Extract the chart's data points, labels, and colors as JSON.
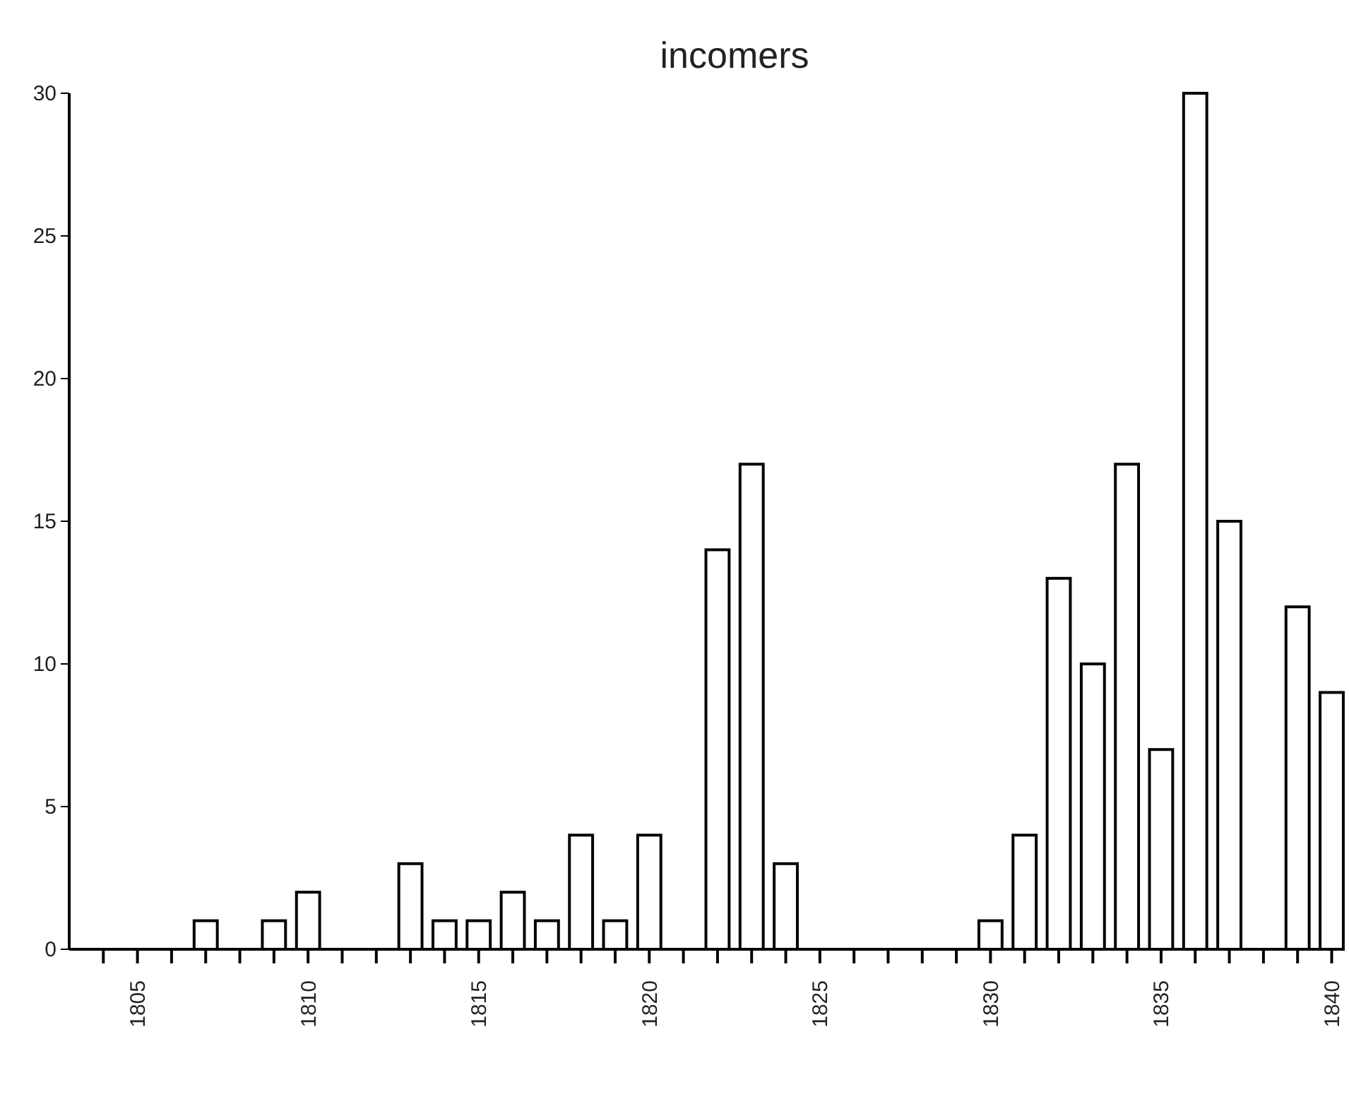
{
  "chart_data": {
    "type": "bar",
    "title": "incomers",
    "x": [
      1805,
      1806,
      1807,
      1808,
      1809,
      1810,
      1811,
      1812,
      1813,
      1814,
      1815,
      1816,
      1817,
      1818,
      1819,
      1820,
      1821,
      1822,
      1823,
      1824,
      1825,
      1826,
      1827,
      1828,
      1829,
      1830,
      1831,
      1832,
      1833,
      1834,
      1835,
      1836,
      1837,
      1838,
      1839,
      1840
    ],
    "values": [
      0,
      0,
      1,
      0,
      1,
      2,
      0,
      0,
      3,
      1,
      1,
      2,
      1,
      4,
      1,
      4,
      0,
      14,
      17,
      3,
      0,
      0,
      0,
      0,
      0,
      1,
      4,
      13,
      10,
      17,
      7,
      30,
      15,
      0,
      12,
      9
    ],
    "color": "#ffffff",
    "xlim": [
      1803,
      1840.3
    ],
    "xticks": [
      {
        "value": 1804,
        "label": null
      },
      1805,
      {
        "value": 1806,
        "label": null
      },
      {
        "value": 1807,
        "label": null
      },
      {
        "value": 1808,
        "label": null
      },
      {
        "value": 1809,
        "label": null
      },
      1810,
      {
        "value": 1811,
        "label": null
      },
      {
        "value": 1812,
        "label": null
      },
      {
        "value": 1813,
        "label": null
      },
      {
        "value": 1814,
        "label": null
      },
      1815,
      {
        "value": 1816,
        "label": null
      },
      {
        "value": 1817,
        "label": null
      },
      {
        "value": 1818,
        "label": null
      },
      {
        "value": 1819,
        "label": null
      },
      1820,
      {
        "value": 1821,
        "label": null
      },
      {
        "value": 1822,
        "label": null
      },
      {
        "value": 1823,
        "label": null
      },
      {
        "value": 1824,
        "label": null
      },
      1825,
      {
        "value": 1826,
        "label": null
      },
      {
        "value": 1827,
        "label": null
      },
      {
        "value": 1828,
        "label": null
      },
      {
        "value": 1829,
        "label": null
      },
      1830,
      {
        "value": 1831,
        "label": null
      },
      {
        "value": 1832,
        "label": null
      },
      {
        "value": 1833,
        "label": null
      },
      {
        "value": 1834,
        "label": null
      },
      1835,
      {
        "value": 1836,
        "label": null
      },
      {
        "value": 1837,
        "label": null
      },
      {
        "value": 1838,
        "label": null
      },
      {
        "value": 1839,
        "label": null
      },
      1840
    ],
    "ylim": [
      0,
      30
    ],
    "yticks": [
      0,
      5,
      10,
      15,
      20,
      25,
      30
    ],
    "grid": false
  }
}
